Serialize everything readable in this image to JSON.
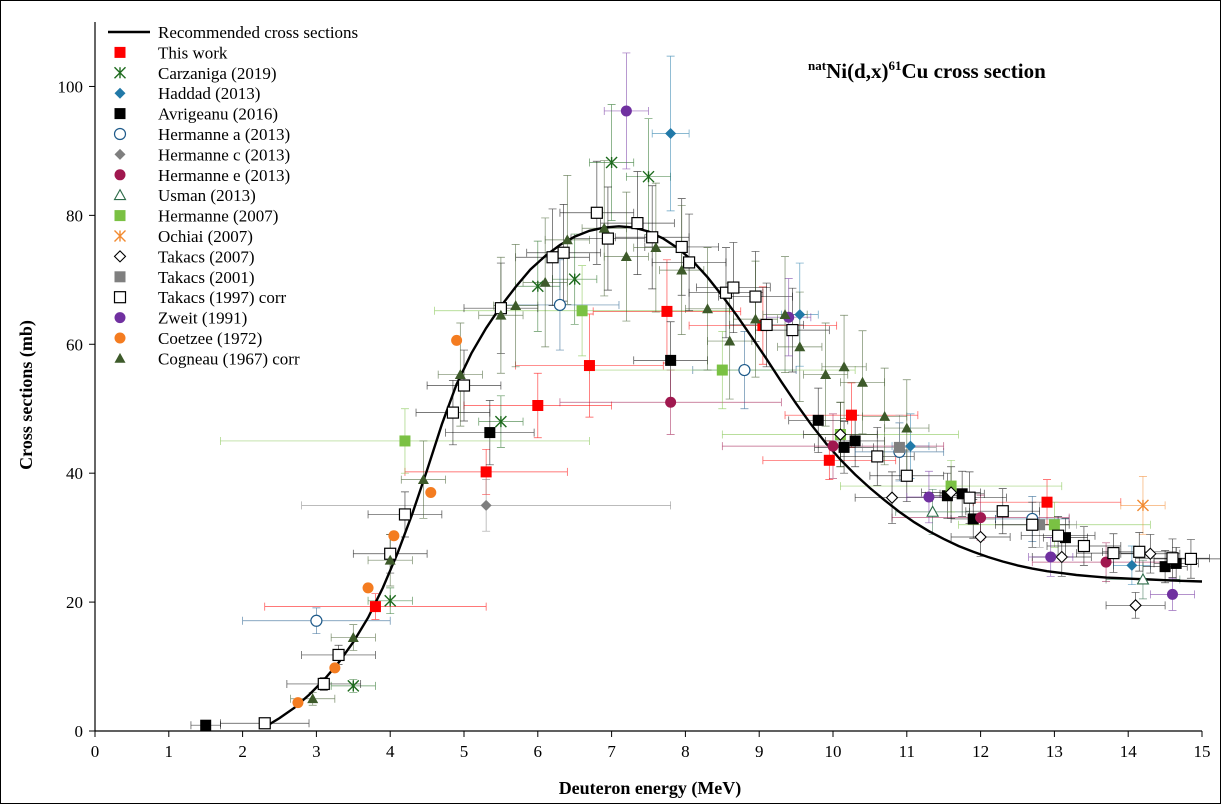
{
  "chart_data": {
    "type": "scatter",
    "title_parts": {
      "sup1": "nat",
      "main1": "Ni(d,x)",
      "sup2": "61",
      "main2": "Cu cross section"
    },
    "xlabel": "Deuteron energy (MeV)",
    "ylabel": "Cross sections (mb)",
    "xlim": [
      0,
      15
    ],
    "ylim": [
      0,
      110
    ],
    "xticks": [
      "0",
      "1",
      "2",
      "3",
      "4",
      "5",
      "6",
      "7",
      "8",
      "9",
      "10",
      "11",
      "12",
      "13",
      "14",
      "15"
    ],
    "yticks": [
      "0",
      "20",
      "40",
      "60",
      "80",
      "100"
    ],
    "grid": false,
    "legend_position": "top-left",
    "curve": {
      "name": "Recommended cross sections",
      "x": [
        2.3,
        2.5,
        2.7,
        2.9,
        3.1,
        3.3,
        3.5,
        3.7,
        3.9,
        4.1,
        4.3,
        4.5,
        4.7,
        4.9,
        5.1,
        5.3,
        5.5,
        5.7,
        5.9,
        6.1,
        6.3,
        6.5,
        6.7,
        6.9,
        7.1,
        7.3,
        7.5,
        7.7,
        7.9,
        8.1,
        8.3,
        8.5,
        8.7,
        8.9,
        9.1,
        9.3,
        9.5,
        9.7,
        9.9,
        10.1,
        10.3,
        10.5,
        10.7,
        10.9,
        11.1,
        11.3,
        11.5,
        11.7,
        11.9,
        12.1,
        12.3,
        12.5,
        12.7,
        12.9,
        13.1,
        13.3,
        13.5,
        13.7,
        13.9,
        14.1,
        14.3,
        14.5,
        14.7,
        15.0
      ],
      "y": [
        0.6,
        2.0,
        3.6,
        5.6,
        7.9,
        10.6,
        13.8,
        17.6,
        22.2,
        27.6,
        33.7,
        40.5,
        47.6,
        53.8,
        58.6,
        62.5,
        65.9,
        68.9,
        71.6,
        73.7,
        75.4,
        76.7,
        77.6,
        78.1,
        78.3,
        78.1,
        77.5,
        76.4,
        74.9,
        72.9,
        70.4,
        67.5,
        64.4,
        61.1,
        57.7,
        54.2,
        50.8,
        47.6,
        44.7,
        42.1,
        39.8,
        37.7,
        35.8,
        34.0,
        32.4,
        31.0,
        29.8,
        28.7,
        27.8,
        27.0,
        26.3,
        25.7,
        25.2,
        24.8,
        24.5,
        24.2,
        24.0,
        23.8,
        23.7,
        23.6,
        23.5,
        23.4,
        23.3,
        23.2
      ]
    },
    "series": [
      {
        "name": "This work",
        "marker": "square",
        "color": "#ff0000",
        "points": [
          [
            3.8,
            19.3,
            1.5,
            2.0
          ],
          [
            5.3,
            40.2,
            1.1,
            3.5
          ],
          [
            6.0,
            50.5,
            1.0,
            5.0
          ],
          [
            6.7,
            56.7,
            1.0,
            8.0
          ],
          [
            7.75,
            65.1,
            1.0,
            8.0
          ],
          [
            9.05,
            62.9,
            1.0,
            6.0
          ],
          [
            9.95,
            42.0,
            0.9,
            3.0
          ],
          [
            10.25,
            49.0,
            0.9,
            5.0
          ],
          [
            12.9,
            35.5,
            1.0,
            3.5
          ]
        ]
      },
      {
        "name": "Carzaniga (2019)",
        "marker": "xstar",
        "color": "#1e6b1e",
        "points": [
          [
            3.5,
            7.0,
            0.3,
            1.0
          ],
          [
            4.0,
            20.2,
            0.3,
            2.0
          ],
          [
            5.5,
            48.0,
            0.3,
            4.0
          ],
          [
            6.0,
            69.0,
            0.3,
            7.0
          ],
          [
            6.5,
            70.1,
            0.3,
            7.0
          ],
          [
            7.0,
            88.2,
            0.3,
            9.0
          ],
          [
            7.5,
            86.0,
            0.3,
            9.0
          ]
        ]
      },
      {
        "name": "Haddad (2013)",
        "marker": "diamond",
        "color": "#2179a8",
        "points": [
          [
            7.8,
            92.7,
            0.25,
            12.0
          ],
          [
            9.55,
            64.6,
            0.25,
            8.0
          ],
          [
            11.05,
            44.2,
            0.25,
            5.0
          ],
          [
            14.05,
            25.7,
            0.25,
            3.0
          ]
        ]
      },
      {
        "name": "Avrigeanu (2016)",
        "marker": "square",
        "color": "#000000",
        "points": [
          [
            1.5,
            0.9,
            0.2,
            0.2
          ],
          [
            5.35,
            46.3,
            0.6,
            5.0
          ],
          [
            7.8,
            57.5,
            0.5,
            6.0
          ],
          [
            9.8,
            48.2,
            0.4,
            5.0
          ],
          [
            10.15,
            44.0,
            0.4,
            4.0
          ],
          [
            10.3,
            45.0,
            0.4,
            4.0
          ],
          [
            11.55,
            36.5,
            0.3,
            3.5
          ],
          [
            11.75,
            36.8,
            0.3,
            3.5
          ],
          [
            11.9,
            32.9,
            0.3,
            3.0
          ],
          [
            13.15,
            30.0,
            0.3,
            3.0
          ],
          [
            14.5,
            25.5,
            0.3,
            2.5
          ],
          [
            14.65,
            26.0,
            0.3,
            2.5
          ]
        ]
      },
      {
        "name": "Hermanne a (2013)",
        "marker": "circle-open",
        "color": "#1e5a8a",
        "points": [
          [
            3.0,
            17.1,
            1.0,
            2.0
          ],
          [
            6.3,
            66.1,
            0.8,
            7.0
          ],
          [
            8.8,
            56.0,
            0.7,
            6.0
          ],
          [
            10.9,
            43.3,
            0.6,
            4.5
          ],
          [
            12.7,
            32.9,
            0.5,
            3.5
          ]
        ]
      },
      {
        "name": "Hermanne c (2013)",
        "marker": "diamond",
        "color": "#7f7f7f",
        "points": [
          [
            5.3,
            35.0,
            2.5,
            4.0
          ]
        ]
      },
      {
        "name": "Hermanne e (2013)",
        "marker": "circle",
        "color": "#a0184f",
        "points": [
          [
            7.8,
            51.0,
            1.5,
            5.0
          ],
          [
            10.0,
            44.2,
            1.5,
            5.0
          ],
          [
            12.0,
            33.1,
            1.2,
            3.5
          ],
          [
            13.7,
            26.2,
            1.0,
            3.0
          ]
        ]
      },
      {
        "name": "Usman (2013)",
        "marker": "triangle-open",
        "color": "#2d6b49",
        "points": [
          [
            11.35,
            34.0,
            0.5,
            3.5
          ],
          [
            14.2,
            23.5,
            0.5,
            3.0
          ]
        ]
      },
      {
        "name": "Hermanne (2007)",
        "marker": "square",
        "color": "#7ac143",
        "points": [
          [
            4.2,
            45.0,
            2.5,
            5.0
          ],
          [
            6.6,
            65.2,
            2.0,
            7.0
          ],
          [
            8.5,
            56.0,
            1.8,
            6.0
          ],
          [
            10.1,
            46.0,
            1.6,
            5.0
          ],
          [
            11.6,
            38.0,
            1.5,
            4.0
          ],
          [
            13.0,
            32.0,
            1.3,
            3.5
          ]
        ]
      },
      {
        "name": "Ochiai (2007)",
        "marker": "xstar",
        "color": "#f28a30",
        "points": [
          [
            14.2,
            35.0,
            0.3,
            4.5
          ]
        ]
      },
      {
        "name": "Takacs (2007)",
        "marker": "diamond-open",
        "color": "#000000",
        "points": [
          [
            10.1,
            46.0,
            0.5,
            5.0
          ],
          [
            10.8,
            36.2,
            0.5,
            4.0
          ],
          [
            11.6,
            37.0,
            0.4,
            4.0
          ],
          [
            12.0,
            30.1,
            0.4,
            3.0
          ],
          [
            13.1,
            27.0,
            0.4,
            3.0
          ],
          [
            14.1,
            19.5,
            0.4,
            2.0
          ],
          [
            14.3,
            27.5,
            0.4,
            3.0
          ]
        ]
      },
      {
        "name": "Takacs (2001)",
        "marker": "square",
        "color": "#7f7f7f",
        "points": [
          [
            10.9,
            44.0,
            0.5,
            5.0
          ],
          [
            12.8,
            32.0,
            0.5,
            3.5
          ]
        ]
      },
      {
        "name": "Takacs (1997) corr",
        "marker": "square-open",
        "color": "#000000",
        "points": [
          [
            2.3,
            1.2,
            0.6,
            0.5
          ],
          [
            3.1,
            7.3,
            0.5,
            1.0
          ],
          [
            3.3,
            11.8,
            0.5,
            1.5
          ],
          [
            4.0,
            27.5,
            0.5,
            3.0
          ],
          [
            4.2,
            33.6,
            0.5,
            3.5
          ],
          [
            4.85,
            49.4,
            0.5,
            5.0
          ],
          [
            5.0,
            53.6,
            0.5,
            5.5
          ],
          [
            5.5,
            65.6,
            0.5,
            7.0
          ],
          [
            6.2,
            73.5,
            0.5,
            7.5
          ],
          [
            6.35,
            74.2,
            0.5,
            7.5
          ],
          [
            6.8,
            80.4,
            0.5,
            8.0
          ],
          [
            6.95,
            76.4,
            0.5,
            8.0
          ],
          [
            7.35,
            78.8,
            0.5,
            8.0
          ],
          [
            7.55,
            76.6,
            0.5,
            8.0
          ],
          [
            7.95,
            75.1,
            0.5,
            7.5
          ],
          [
            8.05,
            72.7,
            0.5,
            7.5
          ],
          [
            8.55,
            68.0,
            0.5,
            7.0
          ],
          [
            8.65,
            68.8,
            0.5,
            7.0
          ],
          [
            8.95,
            67.4,
            0.5,
            7.0
          ],
          [
            9.1,
            63.0,
            0.5,
            6.5
          ],
          [
            9.45,
            62.2,
            0.5,
            6.5
          ],
          [
            10.6,
            42.6,
            0.5,
            4.5
          ],
          [
            11.0,
            39.6,
            0.5,
            4.0
          ],
          [
            11.85,
            36.2,
            0.5,
            4.0
          ],
          [
            12.3,
            34.1,
            0.5,
            3.5
          ],
          [
            12.7,
            32.0,
            0.5,
            3.5
          ],
          [
            13.05,
            30.3,
            0.5,
            3.0
          ],
          [
            13.4,
            28.7,
            0.5,
            3.0
          ],
          [
            13.8,
            27.6,
            0.5,
            3.0
          ],
          [
            14.15,
            27.8,
            0.5,
            3.0
          ],
          [
            14.6,
            26.8,
            0.5,
            3.0
          ],
          [
            14.85,
            26.7,
            0.5,
            3.0
          ]
        ]
      },
      {
        "name": "Zweit (1991)",
        "marker": "circle",
        "color": "#7030a0",
        "points": [
          [
            7.2,
            96.2,
            0.3,
            9.0
          ],
          [
            9.4,
            64.2,
            0.3,
            6.0
          ],
          [
            11.3,
            36.3,
            0.3,
            4.0
          ],
          [
            12.95,
            27.0,
            0.3,
            3.0
          ],
          [
            14.6,
            21.2,
            0.3,
            2.5
          ]
        ]
      },
      {
        "name": "Coetzee (1972)",
        "marker": "circle",
        "color": "#f47c20",
        "points": [
          [
            2.75,
            4.4,
            0,
            0
          ],
          [
            3.25,
            9.8,
            0,
            0
          ],
          [
            3.7,
            22.2,
            0,
            0
          ],
          [
            4.05,
            30.3,
            0,
            0
          ],
          [
            4.55,
            37.0,
            0,
            0
          ],
          [
            4.9,
            60.6,
            0,
            0
          ]
        ]
      },
      {
        "name": "Cogneau (1967) corr",
        "marker": "triangle",
        "color": "#3d5a2a",
        "points": [
          [
            2.95,
            5.0,
            0.3,
            1.0
          ],
          [
            3.5,
            14.5,
            0.3,
            2.0
          ],
          [
            4.0,
            26.5,
            0.3,
            4.0
          ],
          [
            4.45,
            39.0,
            0.3,
            6.0
          ],
          [
            4.95,
            55.3,
            0.3,
            8.0
          ],
          [
            5.5,
            64.5,
            0.3,
            9.0
          ],
          [
            5.7,
            66.0,
            0.3,
            9.5
          ],
          [
            6.1,
            69.6,
            0.3,
            10.0
          ],
          [
            6.4,
            76.2,
            0.3,
            10.0
          ],
          [
            6.9,
            78.0,
            0.3,
            10.5
          ],
          [
            7.2,
            73.6,
            0.3,
            10.0
          ],
          [
            7.6,
            75.0,
            0.3,
            10.0
          ],
          [
            7.95,
            71.5,
            0.3,
            10.0
          ],
          [
            8.3,
            65.5,
            0.3,
            9.5
          ],
          [
            8.6,
            60.5,
            0.3,
            9.0
          ],
          [
            8.95,
            63.9,
            0.3,
            9.0
          ],
          [
            9.35,
            64.6,
            0.3,
            9.0
          ],
          [
            9.55,
            59.6,
            0.3,
            8.5
          ],
          [
            9.9,
            55.3,
            0.3,
            8.0
          ],
          [
            10.15,
            56.5,
            0.3,
            8.0
          ],
          [
            10.4,
            54.1,
            0.3,
            8.0
          ],
          [
            10.7,
            48.8,
            0.3,
            7.5
          ],
          [
            11.0,
            47.0,
            0.3,
            7.5
          ]
        ]
      }
    ]
  }
}
